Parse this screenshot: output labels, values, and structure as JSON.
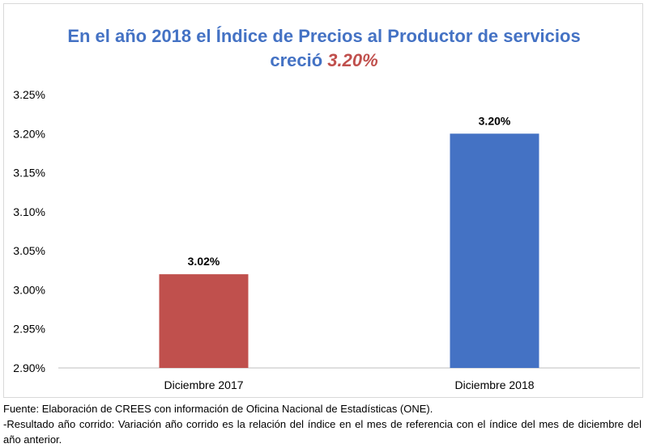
{
  "chart_data": {
    "type": "bar",
    "title_line1": "En el año 2018 el Índice de Precios al Productor de servicios",
    "title_line2_prefix": "creció",
    "title_line2_highlight": "3.20%",
    "categories": [
      "Diciembre 2017",
      "Diciembre 2018"
    ],
    "values": [
      3.02,
      3.2
    ],
    "data_labels": [
      "3.02%",
      "3.20%"
    ],
    "bar_colors": [
      "#c0504d",
      "#4472c4"
    ],
    "ylim": [
      2.9,
      3.25
    ],
    "yticks": [
      2.9,
      2.95,
      3.0,
      3.05,
      3.1,
      3.15,
      3.2,
      3.25
    ],
    "ytick_labels": [
      "2.90%",
      "2.95%",
      "3.00%",
      "3.05%",
      "3.10%",
      "3.15%",
      "3.20%",
      "3.25%"
    ],
    "grid": false,
    "legend": "none"
  },
  "footnotes": {
    "source": "Fuente: Elaboración de CREES con información de Oficina Nacional de Estadísticas (ONE).",
    "note": "-Resultado año corrido: Variación año corrido es la relación del índice en el mes de referencia con el índice del mes de diciembre del año anterior."
  }
}
